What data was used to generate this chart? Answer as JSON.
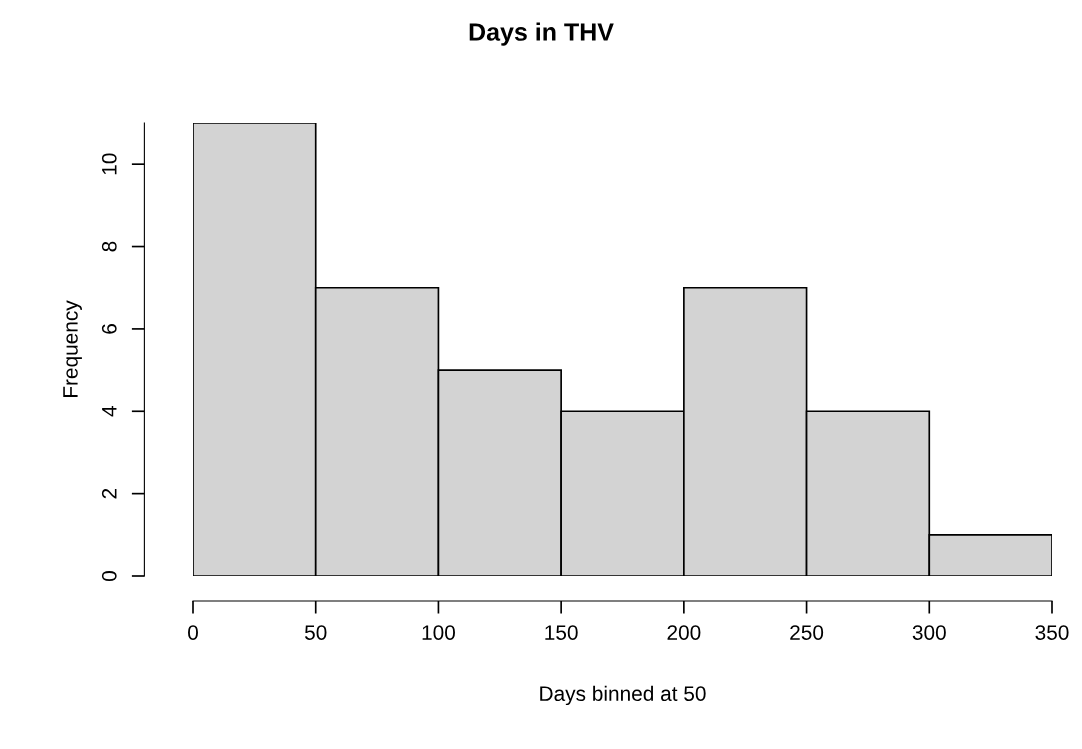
{
  "chart_data": {
    "type": "histogram",
    "title": "Days in THV",
    "xlabel": "Days binned at 50",
    "ylabel": "Frequency",
    "bins": [
      0,
      50,
      100,
      150,
      200,
      250,
      300,
      350
    ],
    "values": [
      11,
      7,
      5,
      4,
      7,
      4,
      1
    ],
    "color": "#d3d3d3",
    "xlim": [
      0,
      350
    ],
    "xticks": [
      0,
      50,
      100,
      150,
      200,
      250,
      300,
      350
    ],
    "ylim": [
      0,
      11
    ],
    "yticks": [
      0,
      2,
      4,
      6,
      8,
      10
    ],
    "grid": false,
    "legend": false
  }
}
